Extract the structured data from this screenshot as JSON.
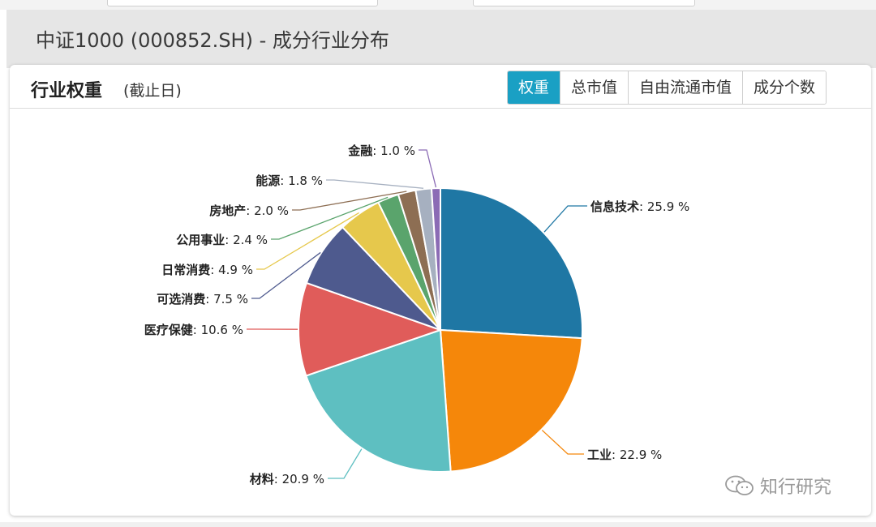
{
  "header": {
    "title": "中证1000 (000852.SH) - 成分行业分布"
  },
  "panel": {
    "title": "行业权重",
    "subtitle": "(截止日)",
    "tabs": [
      {
        "label": "权重",
        "active": true
      },
      {
        "label": "总市值",
        "active": false
      },
      {
        "label": "自由流通市值",
        "active": false
      },
      {
        "label": "成分个数",
        "active": false
      }
    ]
  },
  "watermark": {
    "text": "知行研究",
    "icon": "wechat-icon"
  },
  "chart_data": {
    "type": "pie",
    "unit": "%",
    "slices": [
      {
        "name": "信息技术",
        "value": 25.9,
        "color": "#1f77a4"
      },
      {
        "name": "工业",
        "value": 22.9,
        "color": "#f5870a"
      },
      {
        "name": "材料",
        "value": 20.9,
        "color": "#5ebfc1"
      },
      {
        "name": "医疗保健",
        "value": 10.6,
        "color": "#e05c5a"
      },
      {
        "name": "可选消费",
        "value": 7.5,
        "color": "#4e5a8e"
      },
      {
        "name": "日常消费",
        "value": 4.9,
        "color": "#e6c84c"
      },
      {
        "name": "公用事业",
        "value": 2.4,
        "color": "#5aa46c"
      },
      {
        "name": "房地产",
        "value": 2.0,
        "color": "#8d6e53"
      },
      {
        "name": "能源",
        "value": 1.8,
        "color": "#a6b0c0"
      },
      {
        "name": "金融",
        "value": 1.0,
        "color": "#8b6bb5"
      }
    ]
  }
}
